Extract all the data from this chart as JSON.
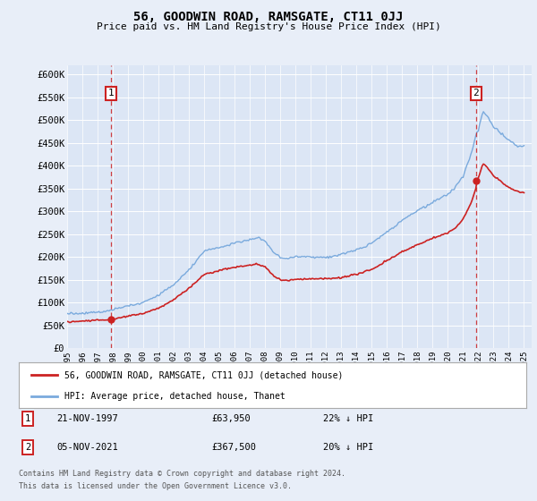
{
  "title": "56, GOODWIN ROAD, RAMSGATE, CT11 0JJ",
  "subtitle": "Price paid vs. HM Land Registry's House Price Index (HPI)",
  "ylim": [
    0,
    620000
  ],
  "yticks": [
    0,
    50000,
    100000,
    150000,
    200000,
    250000,
    300000,
    350000,
    400000,
    450000,
    500000,
    550000,
    600000
  ],
  "ytick_labels": [
    "£0",
    "£50K",
    "£100K",
    "£150K",
    "£200K",
    "£250K",
    "£300K",
    "£350K",
    "£400K",
    "£450K",
    "£500K",
    "£550K",
    "£600K"
  ],
  "sale1_date": 1997.89,
  "sale1_price": 63950,
  "sale2_date": 2021.84,
  "sale2_price": 367500,
  "background_color": "#e8eef8",
  "plot_bg_color": "#dce6f5",
  "line_hpi_color": "#7aaadd",
  "line_price_color": "#cc2222",
  "grid_color": "#ffffff",
  "annotation_box_color": "#cc2222",
  "legend_label_red": "56, GOODWIN ROAD, RAMSGATE, CT11 0JJ (detached house)",
  "legend_label_blue": "HPI: Average price, detached house, Thanet",
  "footer1": "Contains HM Land Registry data © Crown copyright and database right 2024.",
  "footer2": "This data is licensed under the Open Government Licence v3.0.",
  "table_row1_num": "1",
  "table_row1_date": "21-NOV-1997",
  "table_row1_price": "£63,950",
  "table_row1_hpi": "22% ↓ HPI",
  "table_row2_num": "2",
  "table_row2_date": "05-NOV-2021",
  "table_row2_price": "£367,500",
  "table_row2_hpi": "20% ↓ HPI"
}
